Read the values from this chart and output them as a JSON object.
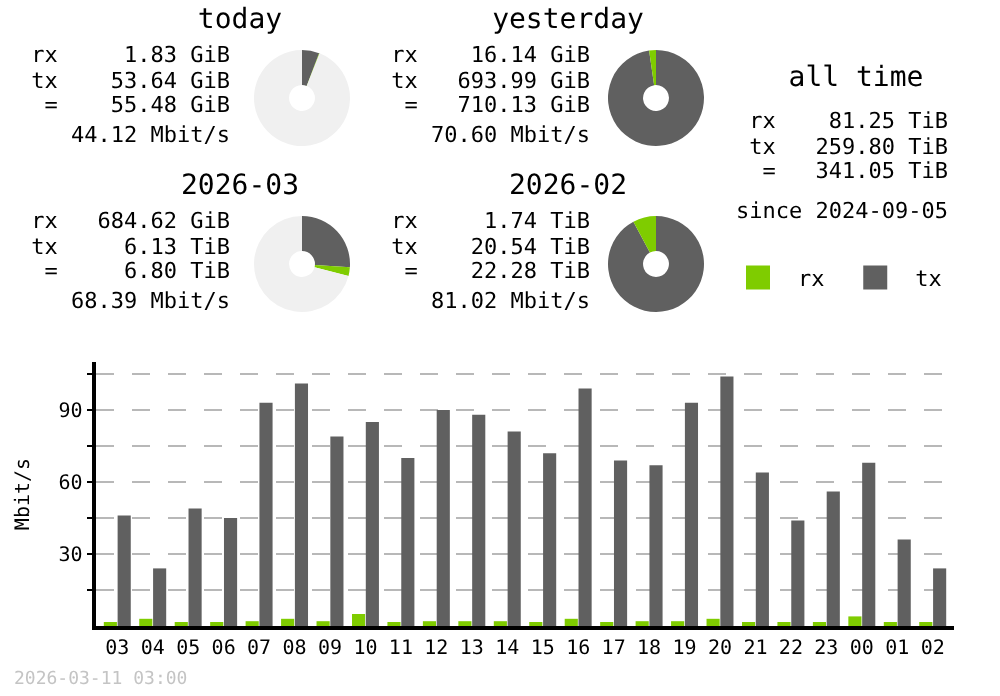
{
  "chart_data": [
    {
      "type": "donut",
      "title": "today",
      "categories": [
        null,
        null,
        null
      ],
      "values": [
        5.8,
        0.2,
        94
      ],
      "colors": [
        "#606060",
        "#7fcc00",
        "#f0f0f0"
      ],
      "legend": false,
      "annotations": [
        "rx     1.83 GiB",
        "tx    53.64 GiB",
        "=    55.48 GiB",
        "44.12 Mbit/s"
      ]
    },
    {
      "type": "donut",
      "title": "yesterday",
      "categories": [
        null,
        null
      ],
      "values": [
        97.7,
        2.3
      ],
      "colors": [
        "#606060",
        "#7fcc00"
      ],
      "legend": false,
      "annotations": [
        "rx    16.14 GiB",
        "tx   693.99 GiB",
        "=   710.13 GiB",
        "70.60 Mbit/s"
      ]
    },
    {
      "type": "other",
      "title": "all time",
      "annotations": [
        "rx    81.25 TiB",
        "tx   259.80 TiB",
        "=   341.05 TiB",
        "since 2024-09-05"
      ]
    },
    {
      "type": "donut",
      "title": "2026-03",
      "categories": [
        null,
        null,
        null
      ],
      "values": [
        26.1,
        2.9,
        71
      ],
      "colors": [
        "#606060",
        "#7fcc00",
        "#f0f0f0"
      ],
      "legend": false,
      "annotations": [
        "rx   684.62 GiB",
        "tx     6.13 TiB",
        "=     6.80 TiB",
        "68.39 Mbit/s"
      ]
    },
    {
      "type": "donut",
      "title": "2026-02",
      "categories": [
        null,
        null
      ],
      "values": [
        92.2,
        7.8
      ],
      "colors": [
        "#606060",
        "#7fcc00"
      ],
      "legend": false,
      "annotations": [
        "rx     1.74 TiB",
        "tx    20.54 TiB",
        "=    22.28 TiB",
        "81.02 Mbit/s"
      ]
    },
    {
      "type": "bar",
      "ylabel": "Mbit/s",
      "categories": [
        "03",
        "04",
        "05",
        "06",
        "07",
        "08",
        "09",
        "10",
        "11",
        "12",
        "13",
        "14",
        "15",
        "16",
        "17",
        "18",
        "19",
        "20",
        "21",
        "22",
        "23",
        "00",
        "01",
        "02"
      ],
      "series": [
        {
          "name": "rx",
          "color": "#7fcc00",
          "values": [
            1,
            3,
            1,
            1,
            2,
            3,
            2,
            5,
            1,
            2,
            2,
            2,
            1,
            3,
            1,
            2,
            2,
            3,
            1,
            1,
            1,
            4,
            1,
            1
          ]
        },
        {
          "name": "tx",
          "color": "#606060",
          "values": [
            46,
            24,
            49,
            45,
            93,
            101,
            79,
            85,
            70,
            90,
            88,
            81,
            72,
            99,
            69,
            67,
            93,
            104,
            64,
            44,
            56,
            68,
            36,
            24
          ]
        }
      ],
      "ylim": [
        0,
        110
      ],
      "yticks": [
        {
          "value": 15,
          "label": null
        },
        30,
        {
          "value": 45,
          "label": null
        },
        60,
        {
          "value": 75,
          "label": null
        },
        90,
        {
          "value": 105,
          "label": null
        }
      ],
      "grid": "y",
      "legend": "top right",
      "annotations": [
        "2026-03-11 03:00"
      ]
    }
  ]
}
